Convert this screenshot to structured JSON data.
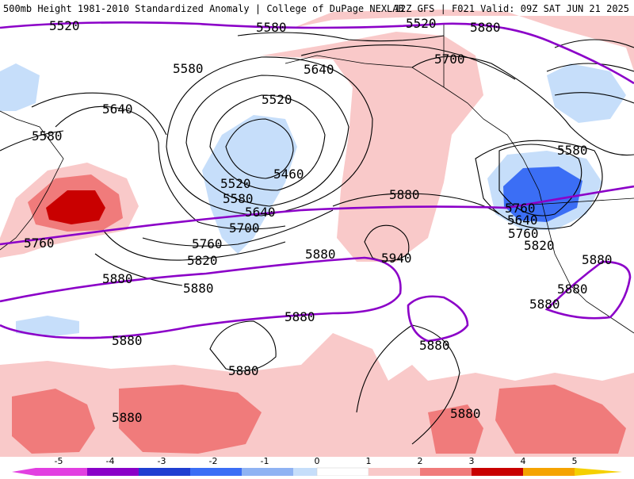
{
  "header": {
    "left_title": "500mb Height 1981-2010 Standardized Anomaly | College of DuPage NEXLAB",
    "right_title": "12Z GFS | F021 Valid: 09Z SAT JUN 21 2025"
  },
  "colors": {
    "ocean": "#ffffff",
    "contour_black": "#000000",
    "contour_purple": "#8b00c8",
    "anom_pos_1": "#f9c9c9",
    "anom_pos_2": "#f07b7b",
    "anom_pos_3": "#c90000",
    "anom_neg_1": "#c6defa",
    "anom_neg_2": "#3b6ef5"
  },
  "contour_labels": {
    "black": [
      "5580",
      "5640",
      "5700",
      "5580",
      "5640",
      "5580",
      "5520",
      "5460",
      "5520",
      "5580",
      "5640",
      "5700",
      "5760",
      "5820",
      "5880",
      "5880",
      "5940",
      "5580",
      "5640",
      "5760",
      "5820",
      "5880",
      "5880",
      "5880",
      "5880",
      "5880",
      "5880"
    ],
    "purple": [
      "5520",
      "5520",
      "5760",
      "5760",
      "5880",
      "5880",
      "5880",
      "5880",
      "5880",
      "5880"
    ]
  },
  "colorbar": {
    "labels": [
      "-5",
      "-4",
      "-3",
      "-2",
      "-1",
      "0",
      "1",
      "2",
      "3",
      "4",
      "5"
    ],
    "colors": [
      "#e23fe1",
      "#8a00c8",
      "#1f3fd1",
      "#3b6ef5",
      "#8fb3f3",
      "#c6defa",
      "#ffffff",
      "#f9c9c9",
      "#f07b7b",
      "#c90000",
      "#f5a300"
    ]
  }
}
